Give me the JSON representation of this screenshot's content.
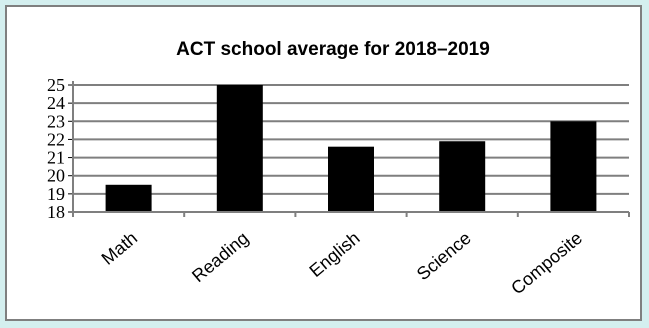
{
  "chart_data": {
    "type": "bar",
    "title": "ACT school average for 2018–2019",
    "xlabel": "",
    "ylabel": "",
    "categories": [
      "Math",
      "Reading",
      "English",
      "Science",
      "Composite"
    ],
    "values": [
      19.5,
      25,
      21.6,
      21.9,
      23
    ],
    "ylim": [
      18,
      25
    ],
    "yticks": [
      "18",
      "19",
      "20",
      "21",
      "22",
      "23",
      "24",
      "25"
    ],
    "grid": true,
    "legend": "none",
    "bar_color": "#000000",
    "grid_color": "#7f7f7f"
  }
}
